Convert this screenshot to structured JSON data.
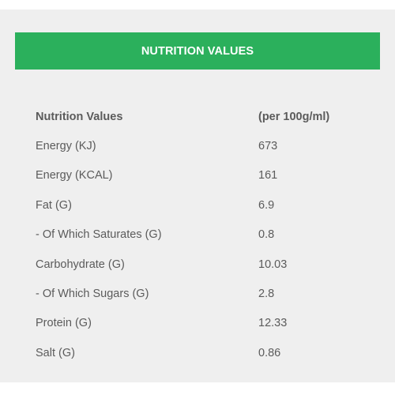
{
  "header": {
    "title": "NUTRITION VALUES"
  },
  "table": {
    "columns": [
      "Nutrition Values",
      "(per 100g/ml)"
    ],
    "rows": [
      {
        "label": "Energy (KJ)",
        "value": "673"
      },
      {
        "label": "Energy (KCAL)",
        "value": "161"
      },
      {
        "label": "Fat (G)",
        "value": "6.9"
      },
      {
        "label": "- Of Which Saturates (G)",
        "value": "0.8"
      },
      {
        "label": "Carbohydrate (G)",
        "value": "10.03"
      },
      {
        "label": "- Of Which Sugars (G)",
        "value": "2.8"
      },
      {
        "label": "Protein (G)",
        "value": "12.33"
      },
      {
        "label": "Salt (G)",
        "value": "0.86"
      }
    ]
  },
  "colors": {
    "accent": "#2bb05c",
    "panel_background": "#efefef",
    "text": "#5b5b5b"
  }
}
